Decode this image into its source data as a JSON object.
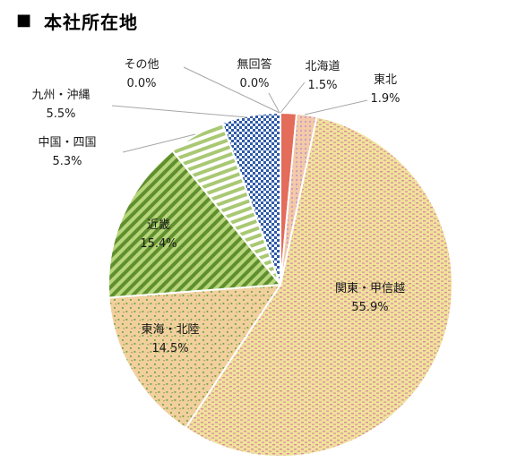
{
  "title_marker": "■",
  "title": "本社所在地",
  "chart_data": {
    "type": "pie",
    "title": "本社所在地",
    "slices": [
      {
        "label": "北海道",
        "value_label": "1.5%",
        "value": 1.5,
        "color": "#e36c5a"
      },
      {
        "label": "東北",
        "value_label": "1.9%",
        "value": 1.9,
        "color": "#e8b8a0"
      },
      {
        "label": "関東・甲信越",
        "value_label": "55.9%",
        "value": 55.9,
        "color": "#eedc8a"
      },
      {
        "label": "東海・北陸",
        "value_label": "14.5%",
        "value": 14.5,
        "color": "#f2cf9e"
      },
      {
        "label": "近畿",
        "value_label": "15.4%",
        "value": 15.4,
        "color": "#9ac05c"
      },
      {
        "label": "中国・四国",
        "value_label": "5.3%",
        "value": 5.3,
        "color": "#c5da9b"
      },
      {
        "label": "九州・沖縄",
        "value_label": "5.5%",
        "value": 5.5,
        "color": "#2e5aa8"
      },
      {
        "label": "その他",
        "value_label": "0.0%",
        "value": 0.0,
        "color": "#9bb7dd"
      },
      {
        "label": "無回答",
        "value_label": "0.0%",
        "value": 0.0,
        "color": "#bfbfbf"
      }
    ]
  }
}
